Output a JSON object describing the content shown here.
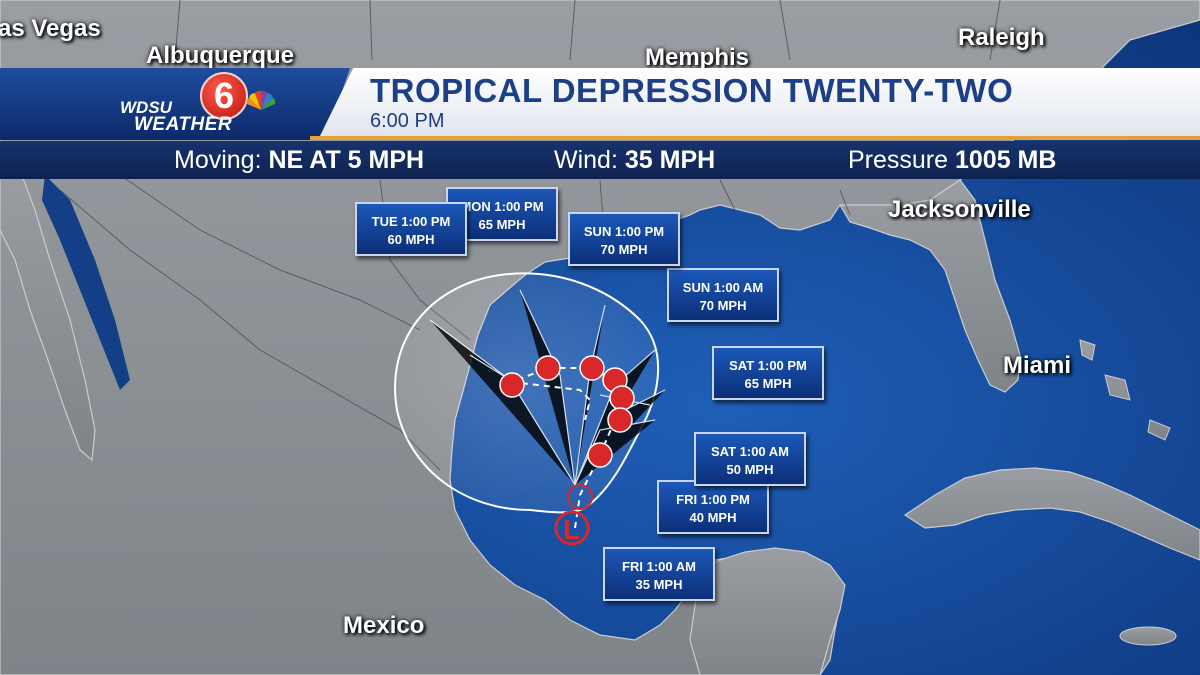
{
  "header": {
    "logo_station": "WDSU",
    "logo_channel": "6",
    "logo_weather": "WEATHER",
    "title": "TROPICAL DEPRESSION TWENTY-TWO",
    "time": "6:00 PM"
  },
  "stats": {
    "moving_label": "Moving:",
    "moving_value": "NE AT 5 MPH",
    "wind_label": "Wind:",
    "wind_value": "35 MPH",
    "pressure_label": "Pressure",
    "pressure_value": "1005 MB"
  },
  "cities": [
    "as Vegas",
    "Albuquerque",
    "Memphis",
    "Raleigh",
    "Jacksonville",
    "Miami",
    "Mexico"
  ],
  "forecast_points": [
    {
      "time": "FRI 1:00 AM",
      "wind": "35 MPH"
    },
    {
      "time": "FRI 1:00 PM",
      "wind": "40 MPH"
    },
    {
      "time": "SAT 1:00 AM",
      "wind": "50 MPH"
    },
    {
      "time": "SAT 1:00 PM",
      "wind": "65 MPH"
    },
    {
      "time": "SUN 1:00 AM",
      "wind": "70 MPH"
    },
    {
      "time": "SUN 1:00 PM",
      "wind": "70 MPH"
    },
    {
      "time": "MON 1:00 PM",
      "wind": "65 MPH"
    },
    {
      "time": "TUE 1:00 PM",
      "wind": "60 MPH"
    }
  ],
  "storm_markers": {
    "low_symbol": "L"
  },
  "colors": {
    "ocean": "#0d3d86",
    "land": "#8d9196",
    "header_blue": "#1c3f86",
    "accent_orange": "#e7a039",
    "track_red": "#d8282a"
  }
}
